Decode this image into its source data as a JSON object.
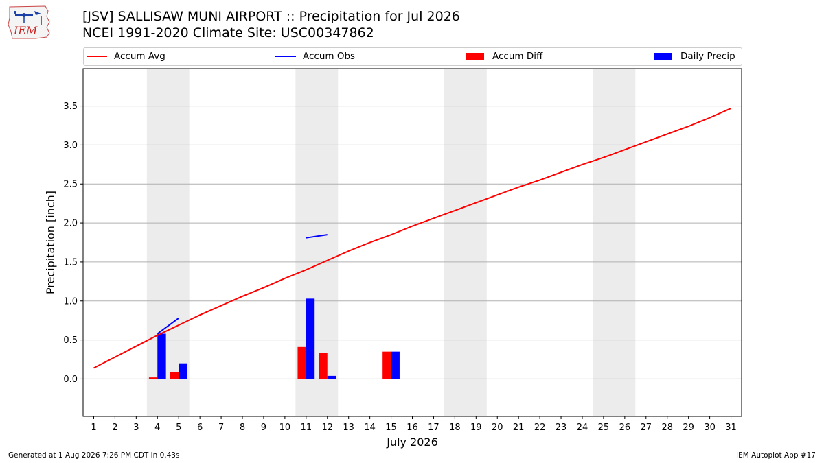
{
  "logo": {
    "text": "IEM"
  },
  "chart_data": {
    "type": "bar",
    "title_line1": "[JSV] SALLISAW MUNI AIRPORT :: Precipitation for Jul 2026",
    "title_line2": "NCEI 1991-2020 Climate Site: USC00347862",
    "xlabel": "July 2026",
    "ylabel": "Precipitation [inch]",
    "xlim": [
      0.5,
      31.5
    ],
    "ylim": [
      -0.48,
      3.98
    ],
    "yticks": [
      0.0,
      0.5,
      1.0,
      1.5,
      2.0,
      2.5,
      3.0,
      3.5
    ],
    "ytick_labels": [
      "0.0",
      "0.5",
      "1.0",
      "1.5",
      "2.0",
      "2.5",
      "3.0",
      "3.5"
    ],
    "xtick_labels": [
      "1",
      "2",
      "3",
      "4",
      "5",
      "6",
      "7",
      "8",
      "9",
      "10",
      "11",
      "12",
      "13",
      "14",
      "15",
      "16",
      "17",
      "18",
      "19",
      "20",
      "21",
      "22",
      "23",
      "24",
      "25",
      "26",
      "27",
      "28",
      "29",
      "30",
      "31"
    ],
    "grid": "horizontal",
    "weekend_shading": [
      [
        3.5,
        5.5
      ],
      [
        10.5,
        12.5
      ],
      [
        17.5,
        19.5
      ],
      [
        24.5,
        26.5
      ]
    ],
    "legend": [
      {
        "name": "Accum Avg",
        "kind": "line",
        "color": "#ff0000"
      },
      {
        "name": "Accum Obs",
        "kind": "line",
        "color": "#0000ff"
      },
      {
        "name": "Accum Diff",
        "kind": "bar",
        "color": "#ff0000"
      },
      {
        "name": "Daily Precip",
        "kind": "bar",
        "color": "#0000ff"
      }
    ],
    "series": [
      {
        "name": "Accum Avg",
        "type": "line",
        "color": "#ff0000",
        "x": [
          1,
          2,
          3,
          4,
          5,
          6,
          7,
          8,
          9,
          10,
          11,
          12,
          13,
          14,
          15,
          16,
          17,
          18,
          19,
          20,
          21,
          22,
          23,
          24,
          25,
          26,
          27,
          28,
          29,
          30,
          31
        ],
        "values": [
          0.14,
          0.28,
          0.42,
          0.56,
          0.69,
          0.82,
          0.94,
          1.06,
          1.17,
          1.29,
          1.4,
          1.52,
          1.64,
          1.75,
          1.85,
          1.96,
          2.06,
          2.16,
          2.26,
          2.36,
          2.46,
          2.55,
          2.65,
          2.75,
          2.84,
          2.94,
          3.04,
          3.14,
          3.24,
          3.35,
          3.47
        ]
      },
      {
        "name": "Accum Obs",
        "type": "line",
        "color": "#0000ff",
        "segments": [
          {
            "x": [
              4,
              5
            ],
            "values": [
              0.58,
              0.78
            ]
          },
          {
            "x": [
              11,
              12
            ],
            "values": [
              1.81,
              1.85
            ]
          }
        ]
      },
      {
        "name": "Accum Diff",
        "type": "bar",
        "color": "#ff0000",
        "x": [
          4,
          5,
          11,
          12,
          15
        ],
        "values": [
          0.02,
          0.09,
          0.41,
          0.33,
          0.35
        ]
      },
      {
        "name": "Daily Precip",
        "type": "bar",
        "color": "#0000ff",
        "x": [
          4,
          5,
          11,
          12,
          15
        ],
        "values": [
          0.58,
          0.2,
          1.03,
          0.04,
          0.35
        ]
      }
    ]
  },
  "footer": {
    "generated": "Generated at 1 Aug 2026 7:26 PM CDT in 0.43s",
    "app": "IEM Autoplot App #17"
  }
}
